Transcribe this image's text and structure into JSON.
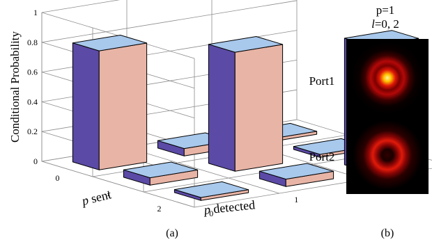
{
  "chart_data": {
    "type": "bar3d",
    "title": "",
    "zlabel": "Conditional Probability",
    "xlabel_italic": "p",
    "xlabel_rest": " sent",
    "ylabel_italic": "p",
    "ylabel_rest": " detected",
    "p_sent": [
      "0",
      "1",
      "2"
    ],
    "p_detected": [
      "0",
      "1",
      "2"
    ],
    "z_ticks": [
      "0",
      "0.2",
      "0.4",
      "0.6",
      "0.8",
      "1"
    ],
    "zlim": [
      0,
      1
    ],
    "values": [
      [
        0.8,
        0.05,
        0.02
      ],
      [
        0.05,
        0.8,
        0.02
      ],
      [
        0.02,
        0.05,
        0.85
      ]
    ],
    "caption": "(a)"
  },
  "panel_b": {
    "title_line1": "p=1",
    "title_line2_italic": "l",
    "title_line2_rest": "=0, 2",
    "ports": [
      "Port1",
      "Port2"
    ],
    "caption": "(b)"
  },
  "colors": {
    "bar_front": "#e8b4a6",
    "bar_side": "#5b4aa6",
    "bar_top": "#a8c8ec",
    "grid": "#8c8c8c"
  }
}
